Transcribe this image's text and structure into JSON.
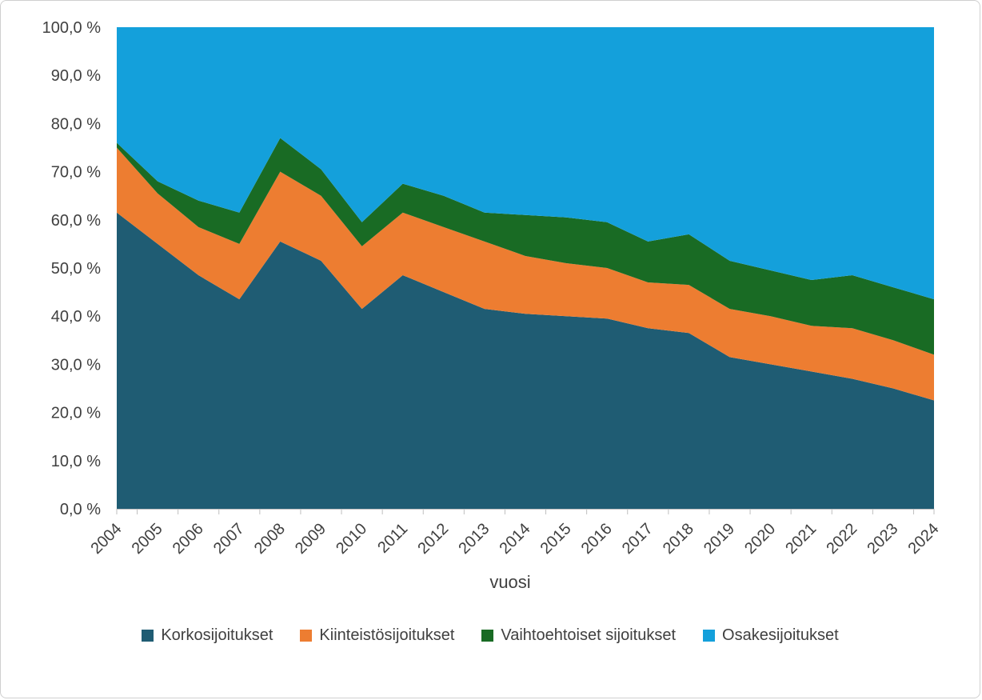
{
  "chart_data": {
    "type": "area",
    "stacked": true,
    "percent_stacked": true,
    "title": "",
    "xlabel": "vuosi",
    "ylabel": "",
    "ylim": [
      0,
      100
    ],
    "grid": false,
    "legend_position": "bottom",
    "axis_color": "#bfbfbf",
    "text_color": "#404040",
    "categories": [
      "2004",
      "2005",
      "2006",
      "2007",
      "2008",
      "2009",
      "2010",
      "2011",
      "2012",
      "2013",
      "2014",
      "2015",
      "2016",
      "2017",
      "2018",
      "2019",
      "2020",
      "2021",
      "2022",
      "2023",
      "2024"
    ],
    "y_tick_values": [
      0,
      10,
      20,
      30,
      40,
      50,
      60,
      70,
      80,
      90,
      100
    ],
    "y_tick_labels": [
      "0,0 %",
      "10,0 %",
      "20,0 %",
      "30,0 %",
      "40,0 %",
      "50,0 %",
      "60,0 %",
      "70,0 %",
      "80,0 %",
      "90,0 %",
      "100,0 %"
    ],
    "series": [
      {
        "id": "korkosijoitukset",
        "name": "Korkosijoitukset",
        "color": "#1F5C73",
        "values": [
          61.5,
          55.0,
          48.5,
          43.5,
          55.5,
          51.5,
          41.5,
          48.5,
          45.0,
          41.5,
          40.5,
          40.0,
          39.5,
          37.5,
          36.5,
          31.5,
          30.0,
          28.5,
          27.0,
          25.0,
          22.5
        ]
      },
      {
        "id": "kiinteistosijoitukset",
        "name": "Kiinteistösijoitukset",
        "color": "#ED7D31",
        "values": [
          13.5,
          10.5,
          10.0,
          11.5,
          14.5,
          13.5,
          13.0,
          13.0,
          13.5,
          14.0,
          12.0,
          11.0,
          10.5,
          9.5,
          10.0,
          10.0,
          10.0,
          9.5,
          10.5,
          10.0,
          9.5
        ]
      },
      {
        "id": "vaihtoehtoiset-sijoitukset",
        "name": "Vaihtoehtoiset sijoitukset",
        "color": "#196B24",
        "values": [
          1.0,
          2.5,
          5.5,
          6.5,
          7.0,
          5.5,
          5.0,
          6.0,
          6.5,
          6.0,
          8.5,
          9.5,
          9.5,
          8.5,
          10.5,
          10.0,
          9.5,
          9.5,
          11.0,
          11.0,
          11.5
        ]
      },
      {
        "id": "osakesijoitukset",
        "name": "Osakesijoitukset",
        "color": "#14A0DB",
        "values": [
          24.0,
          32.0,
          36.0,
          38.5,
          23.0,
          29.5,
          40.5,
          32.5,
          35.0,
          38.5,
          39.0,
          39.5,
          40.5,
          44.5,
          43.0,
          48.5,
          50.5,
          52.5,
          51.5,
          54.0,
          56.5
        ]
      }
    ]
  }
}
